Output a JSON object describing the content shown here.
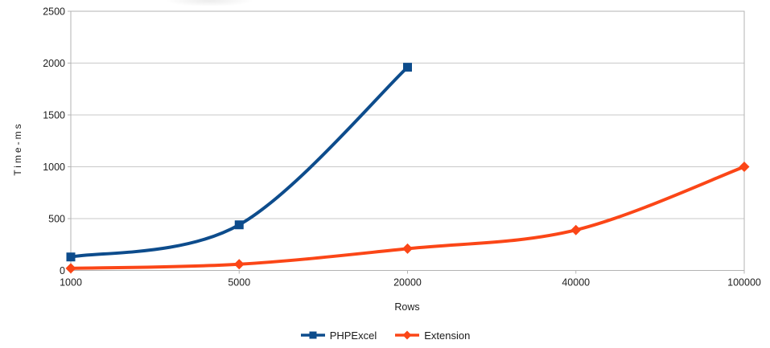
{
  "chart_data": {
    "type": "line",
    "smooth": true,
    "categories": [
      "1000",
      "5000",
      "20000",
      "40000",
      "100000"
    ],
    "series": [
      {
        "name": "PHPExcel",
        "color": "#0d4c8c",
        "marker": "square",
        "values": [
          130,
          440,
          1960,
          null,
          null
        ]
      },
      {
        "name": "Extension",
        "color": "#fb4617",
        "marker": "diamond",
        "values": [
          20,
          60,
          210,
          390,
          1000
        ]
      }
    ],
    "title": "",
    "xlabel": "Rows",
    "ylabel": "Time-ms",
    "ylim": [
      0,
      2500
    ],
    "y_ticks": [
      0,
      500,
      1000,
      1500,
      2000,
      2500
    ],
    "grid": "horizontal",
    "legend_position": "bottom"
  },
  "style_colors": {
    "gridline": "#c9c9c9",
    "plot_border": "#b3b3b3",
    "tick": "#b3b3b3",
    "tick_label": "#1d1d1d"
  }
}
